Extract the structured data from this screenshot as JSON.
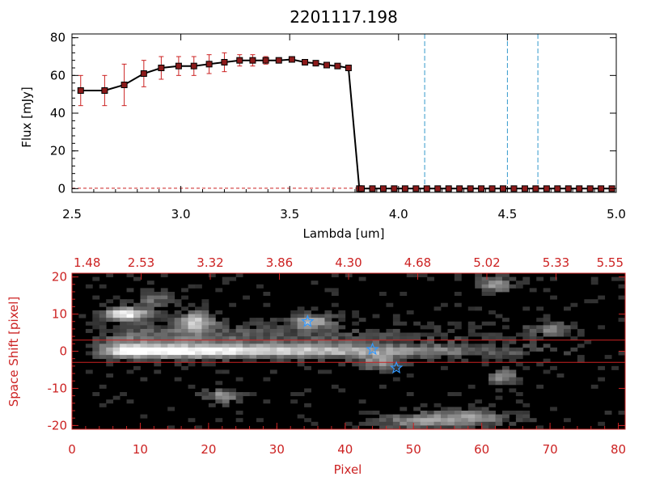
{
  "chart_data": [
    {
      "type": "line",
      "title": "2201117.198",
      "xlabel": "Lambda [um]",
      "ylabel": "Flux [mJy]",
      "xlim": [
        2.5,
        5.0
      ],
      "ylim": [
        -2,
        82
      ],
      "xticks": [
        "2.5",
        "3.0",
        "3.5",
        "4.0",
        "4.5",
        "5.0"
      ],
      "yticks": [
        "0",
        "20",
        "40",
        "60",
        "80"
      ],
      "series": [
        {
          "marker": "square",
          "color": "#000000",
          "marker_color": "#8b1a1a",
          "errorbar_color": "#cc2222",
          "x": [
            2.54,
            2.65,
            2.74,
            2.83,
            2.91,
            2.99,
            3.06,
            3.13,
            3.2,
            3.27,
            3.33,
            3.39,
            3.45,
            3.51,
            3.57,
            3.62,
            3.67,
            3.72,
            3.77,
            3.82,
            3.83,
            3.88,
            3.93,
            3.98,
            4.03,
            4.08,
            4.13,
            4.18,
            4.23,
            4.28,
            4.33,
            4.38,
            4.43,
            4.48,
            4.53,
            4.58,
            4.63,
            4.68,
            4.73,
            4.78,
            4.83,
            4.88,
            4.93,
            4.98
          ],
          "y": [
            52,
            52,
            55,
            61,
            64,
            65,
            65,
            66,
            67,
            68,
            68,
            68,
            68,
            68.5,
            67,
            66.5,
            65.5,
            65,
            64,
            0,
            0,
            0,
            0,
            0,
            0,
            0,
            0,
            0,
            0,
            0,
            0,
            0,
            0,
            0,
            0,
            0,
            0,
            0,
            0,
            0,
            0,
            0,
            0,
            0
          ],
          "err": [
            8,
            8,
            11,
            7,
            6,
            5,
            5,
            5,
            5,
            3,
            3,
            2,
            1,
            1,
            1,
            1,
            1,
            1,
            1,
            0,
            0,
            0,
            0,
            0,
            0,
            0,
            0,
            0,
            0,
            0,
            0,
            0,
            0,
            0,
            0,
            0,
            0,
            0,
            0,
            0,
            0,
            0,
            0,
            0
          ]
        }
      ],
      "vlines": [
        4.12,
        4.5,
        4.64
      ],
      "vline_color": "#3399cc",
      "hline_color": "#cc2222",
      "hline": 0.2
    },
    {
      "type": "heatmap",
      "xlabel": "Pixel",
      "ylabel": "Space Shift [pixel]",
      "xlim": [
        0,
        81
      ],
      "ylim": [
        -21,
        21
      ],
      "xticks": [
        "0",
        "10",
        "20",
        "30",
        "40",
        "50",
        "60",
        "70",
        "80"
      ],
      "yticks": [
        "-20",
        "-10",
        "0",
        "10",
        "20"
      ],
      "top_xticks": [
        "1.48",
        "2.53",
        "3.32",
        "3.86",
        "4.30",
        "4.68",
        "5.02",
        "5.33",
        "5.55"
      ],
      "hlines": [
        3,
        -3
      ],
      "markers": [
        {
          "x": 34.5,
          "y": 8
        },
        {
          "x": 44,
          "y": 0.5
        },
        {
          "x": 47.5,
          "y": -4.5
        }
      ],
      "marker_color": "#3399ff",
      "axis_color": "#cc2222"
    }
  ]
}
